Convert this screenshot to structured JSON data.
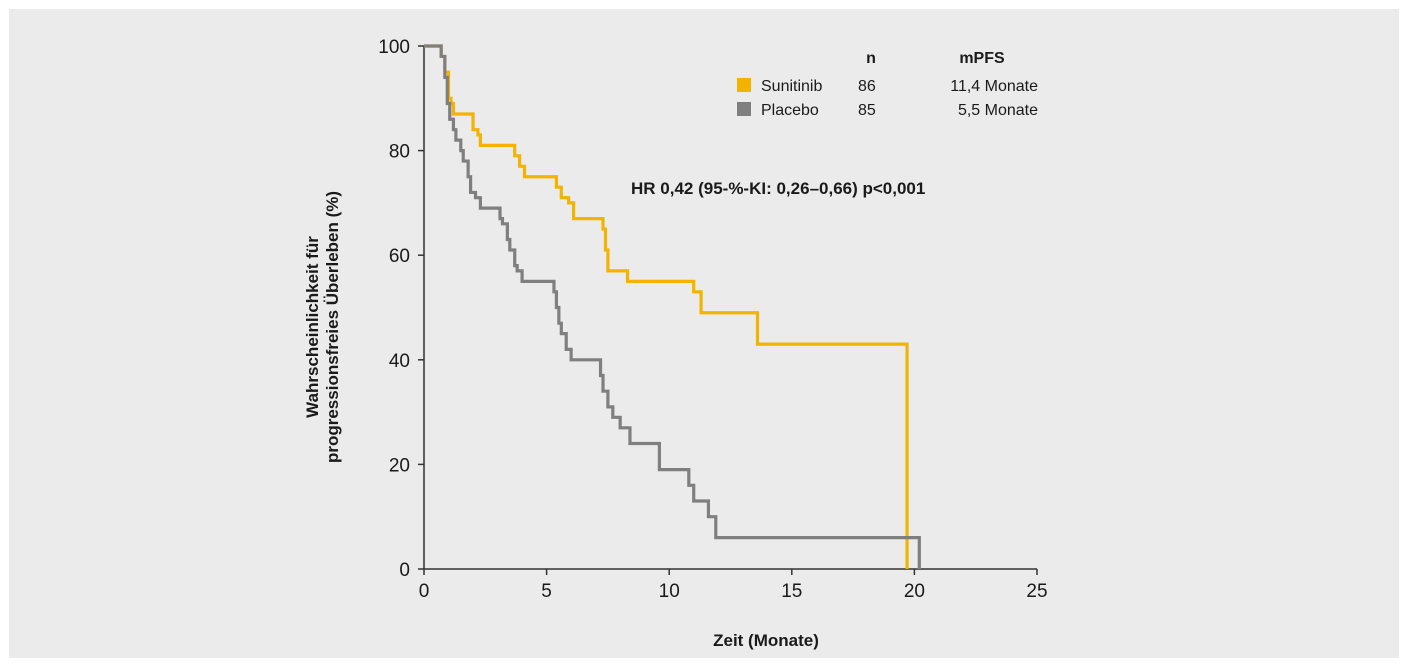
{
  "chart_data": {
    "type": "line",
    "xlabel": "Zeit (Monate)",
    "ylabel_lines": [
      "Wahrscheinlichkeit für",
      "progressionsfreies Überleben (%)"
    ],
    "xlim": [
      0,
      25
    ],
    "ylim": [
      0,
      100
    ],
    "x_ticks": [
      "0",
      "5",
      "10",
      "15",
      "20",
      "25"
    ],
    "y_ticks": [
      "0",
      "20",
      "40",
      "60",
      "80",
      "100"
    ],
    "grid": false,
    "legend_position": "top-right",
    "legend_headers": {
      "n": "n",
      "mpfs": "mPFS"
    },
    "annotation": "HR 0,42 (95-%-KI: 0,26–0,66) p<0,001",
    "series": [
      {
        "name": "Sunitinib",
        "n": "86",
        "mpfs": "11,4 Monate",
        "color": "#f2b400",
        "step_points": [
          [
            0,
            100
          ],
          [
            0.7,
            98
          ],
          [
            0.85,
            95
          ],
          [
            1.0,
            90
          ],
          [
            1.1,
            89
          ],
          [
            1.2,
            87
          ],
          [
            2.0,
            84
          ],
          [
            2.2,
            83
          ],
          [
            2.3,
            81
          ],
          [
            3.7,
            79
          ],
          [
            3.9,
            77
          ],
          [
            4.1,
            75
          ],
          [
            5.4,
            73
          ],
          [
            5.6,
            71
          ],
          [
            5.9,
            70
          ],
          [
            6.1,
            67
          ],
          [
            7.3,
            65
          ],
          [
            7.4,
            61
          ],
          [
            7.5,
            57
          ],
          [
            8.3,
            55
          ],
          [
            11.0,
            53
          ],
          [
            11.3,
            49
          ],
          [
            13.6,
            43
          ],
          [
            19.7,
            0
          ]
        ]
      },
      {
        "name": "Placebo",
        "n": "85",
        "mpfs": "5,5 Monate",
        "color": "#7f7f7f",
        "step_points": [
          [
            0,
            100
          ],
          [
            0.7,
            98
          ],
          [
            0.85,
            94
          ],
          [
            0.95,
            89
          ],
          [
            1.05,
            86
          ],
          [
            1.2,
            84
          ],
          [
            1.3,
            82
          ],
          [
            1.5,
            80
          ],
          [
            1.6,
            78
          ],
          [
            1.8,
            75
          ],
          [
            1.9,
            72
          ],
          [
            2.1,
            71
          ],
          [
            2.3,
            69
          ],
          [
            3.1,
            67
          ],
          [
            3.2,
            66
          ],
          [
            3.4,
            63
          ],
          [
            3.5,
            61
          ],
          [
            3.7,
            58
          ],
          [
            3.8,
            57
          ],
          [
            4.0,
            55
          ],
          [
            5.3,
            53
          ],
          [
            5.4,
            50
          ],
          [
            5.5,
            47
          ],
          [
            5.6,
            45
          ],
          [
            5.8,
            42
          ],
          [
            6.0,
            40
          ],
          [
            7.2,
            37
          ],
          [
            7.3,
            34
          ],
          [
            7.5,
            31
          ],
          [
            7.7,
            29
          ],
          [
            8.0,
            27
          ],
          [
            8.4,
            24
          ],
          [
            9.6,
            19
          ],
          [
            10.8,
            16
          ],
          [
            11.0,
            13
          ],
          [
            11.6,
            10
          ],
          [
            11.9,
            6
          ],
          [
            20.2,
            0
          ]
        ]
      }
    ]
  }
}
